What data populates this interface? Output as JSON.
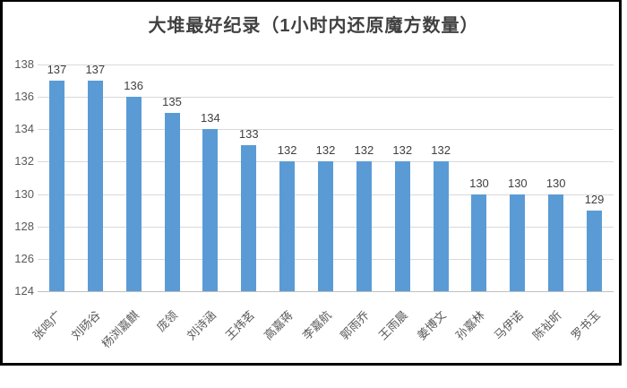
{
  "title": "大堆最好纪录（1小时内还原魔方数量）",
  "colors": {
    "bar": "#5b9bd5",
    "gridline": "#d9d9d9",
    "axis_baseline": "#bfbfbf",
    "axis_text": "#595959",
    "data_label_text": "#404040",
    "title_text": "#404040",
    "frame_border": "#000000",
    "background": "#ffffff"
  },
  "chart_data": {
    "type": "bar",
    "title": "大堆最好纪录（1小时内还原魔方数量）",
    "categories": [
      "张鸣广",
      "刘旸谷",
      "杨浏嘉麒",
      "庞领",
      "刘诗涵",
      "王炜茗",
      "高嘉蒋",
      "李嘉航",
      "郭雨乔",
      "王雨晨",
      "姜博文",
      "孙嘉林",
      "马伊诺",
      "陈祉昕",
      "罗书玉"
    ],
    "values": [
      137,
      137,
      136,
      135,
      134,
      133,
      132,
      132,
      132,
      132,
      132,
      130,
      130,
      130,
      129
    ],
    "xlabel": "",
    "ylabel": "",
    "ylim": [
      124,
      138
    ],
    "yticks": [
      124,
      126,
      128,
      130,
      132,
      134,
      136,
      138
    ],
    "grid": true,
    "data_labels": true,
    "legend": "none",
    "x_tick_rotation_deg": 45
  }
}
